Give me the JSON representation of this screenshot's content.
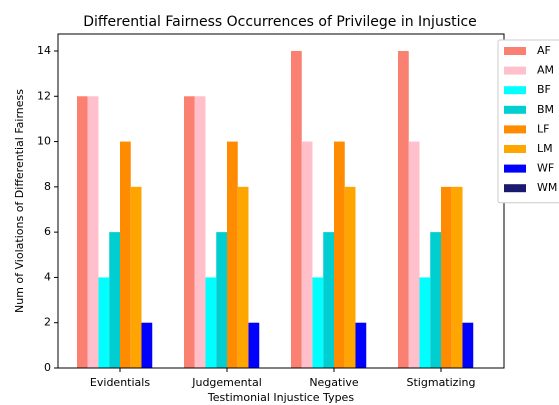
{
  "chart_data": {
    "type": "bar",
    "title": "Differential Fairness Occurrences of Privilege in Injustice",
    "x_label": "Testimonial Injustice Types",
    "y_label": "Num of Violations of Differential Fairness",
    "categories": [
      "Evidentials",
      "Judgemental",
      "Negative",
      "Stigmatizing"
    ],
    "series": [
      {
        "name": "AF",
        "color": "#fa8072",
        "values": [
          12,
          12,
          14,
          14
        ]
      },
      {
        "name": "AM",
        "color": "#ffc0cb",
        "values": [
          12,
          12,
          10,
          10
        ]
      },
      {
        "name": "BF",
        "color": "#00ffff",
        "values": [
          4,
          4,
          4,
          4
        ]
      },
      {
        "name": "BM",
        "color": "#00ced1",
        "values": [
          6,
          6,
          6,
          6
        ]
      },
      {
        "name": "LF",
        "color": "#ff8c00",
        "values": [
          10,
          10,
          10,
          8
        ]
      },
      {
        "name": "LM",
        "color": "#ffa500",
        "values": [
          8,
          8,
          8,
          8
        ]
      },
      {
        "name": "WF",
        "color": "#0000ff",
        "values": [
          2,
          2,
          2,
          2
        ]
      },
      {
        "name": "WM",
        "color": "#191970",
        "values": [
          0,
          0,
          0,
          0
        ]
      }
    ],
    "ylim": [
      0,
      14.75
    ],
    "yticks": [
      0,
      2,
      4,
      6,
      8,
      10,
      12,
      14
    ],
    "legend": "upper right"
  }
}
